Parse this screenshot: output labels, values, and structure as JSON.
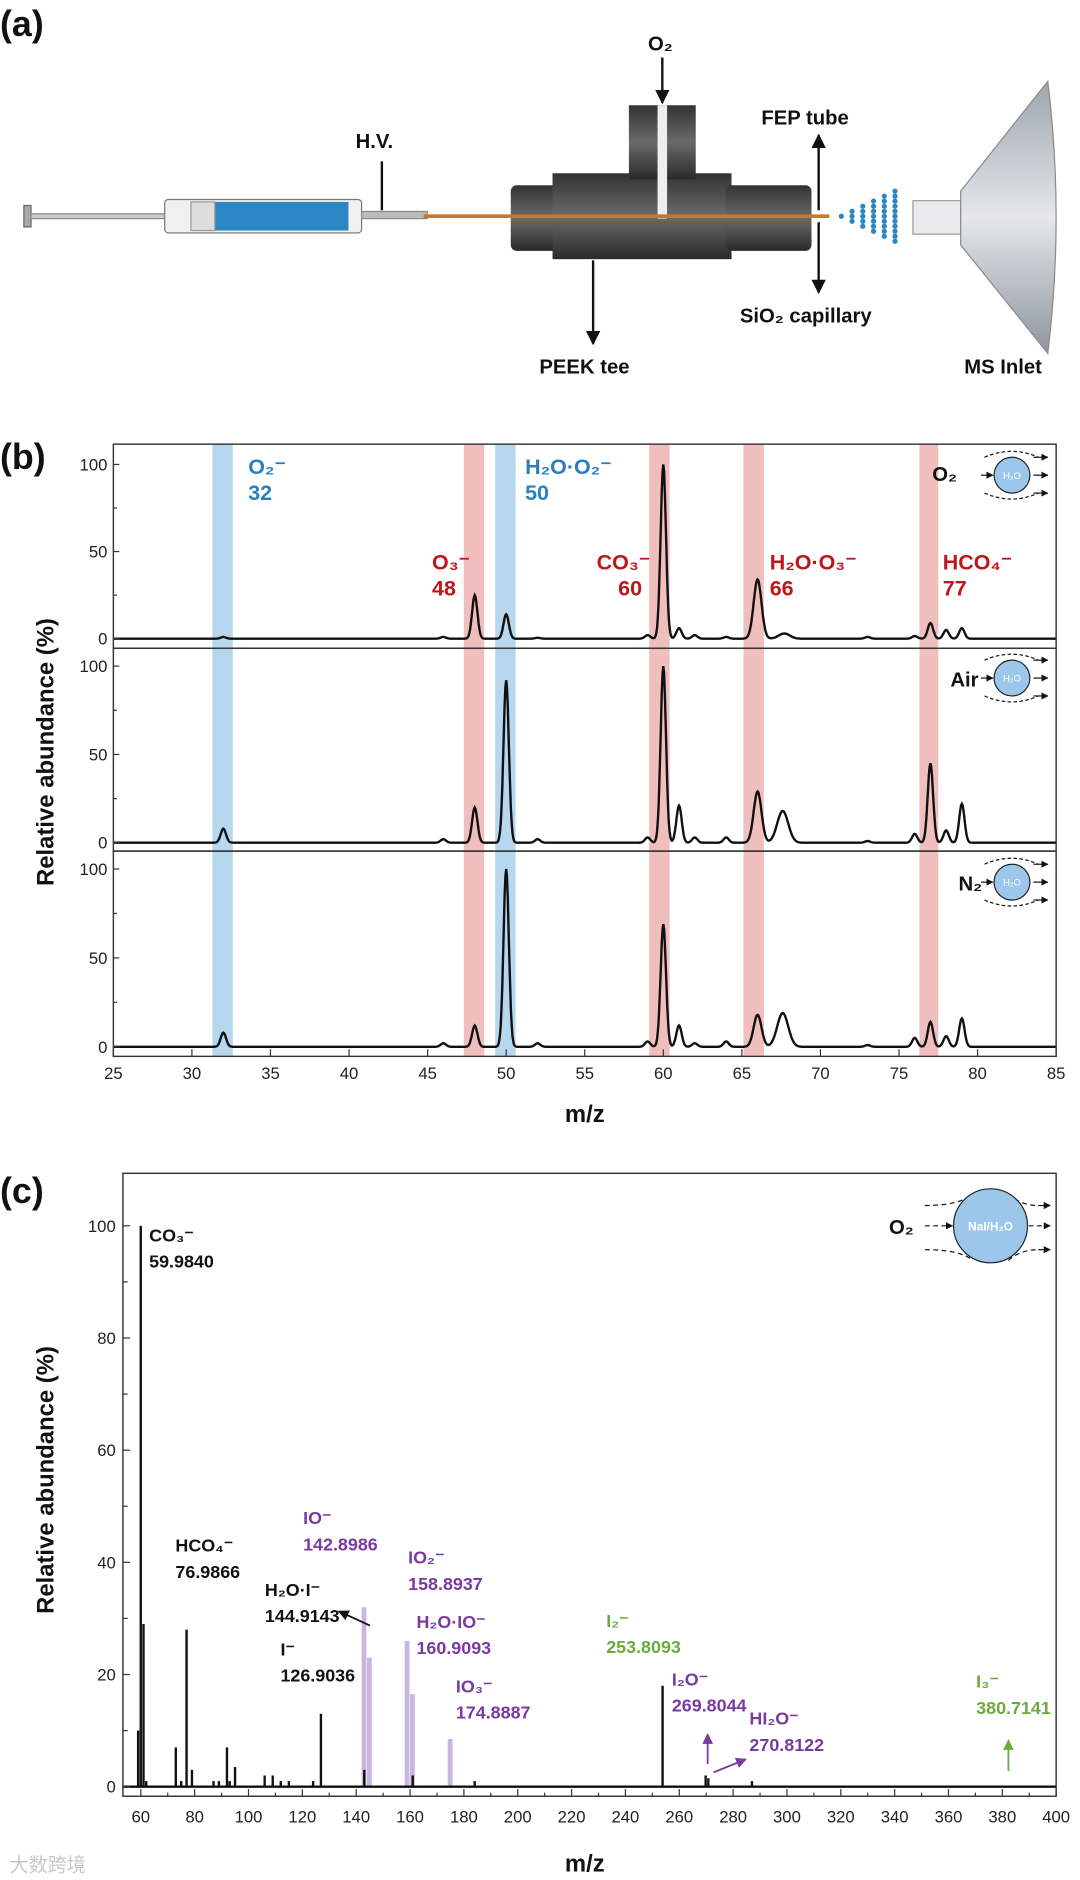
{
  "panels": {
    "a": "(a)",
    "b": "(b)",
    "c": "(c)"
  },
  "diagram": {
    "hv": "H.V.",
    "o2": "O₂",
    "fep": "FEP tube",
    "sio2": "SiO₂ capillary",
    "peek": "PEEK tee",
    "ms": "MS Inlet"
  },
  "watermark": "大数跨境",
  "colors": {
    "blue_band": "#a9d0ea",
    "red_band": "#eeb3b3",
    "droplet": "#9cc7ea",
    "lavender": "#c9b6de",
    "syringe": "#2a87c4",
    "capillary": "#c8782a"
  },
  "chart_data": [
    {
      "type": "line",
      "title": "(b)",
      "xlabel": "m/z",
      "ylabel": "Relative abundance (%)",
      "xlim": [
        25,
        85
      ],
      "xticks": [
        25,
        30,
        35,
        40,
        45,
        50,
        55,
        60,
        65,
        70,
        75,
        80,
        85
      ],
      "ylim": [
        0,
        100
      ],
      "yticks": [
        0,
        50,
        100
      ],
      "bands": [
        {
          "color": "blue",
          "range": [
            31.3,
            32.6
          ],
          "label": "O₂⁻",
          "mz": "32"
        },
        {
          "color": "red",
          "range": [
            47.3,
            48.6
          ],
          "label": "O₃⁻",
          "mz": "48"
        },
        {
          "color": "blue",
          "range": [
            49.3,
            50.6
          ],
          "label": "H₂O·O₂⁻",
          "mz": "50"
        },
        {
          "color": "red",
          "range": [
            59.1,
            60.4
          ],
          "label": "CO₃⁻",
          "mz": "60"
        },
        {
          "color": "red",
          "range": [
            65.1,
            66.4
          ],
          "label": "H₂O·O₃⁻",
          "mz": "66"
        },
        {
          "color": "red",
          "range": [
            76.3,
            77.5
          ],
          "label": "HCO₄⁻",
          "mz": "77"
        }
      ],
      "series": [
        {
          "name": "O₂",
          "peaks": [
            [
              32,
              1
            ],
            [
              46,
              1
            ],
            [
              48,
              25
            ],
            [
              50,
              14
            ],
            [
              52,
              0.5
            ],
            [
              59,
              2
            ],
            [
              60,
              100
            ],
            [
              61,
              6
            ],
            [
              62,
              2
            ],
            [
              64,
              1
            ],
            [
              66,
              34
            ],
            [
              67.7,
              3
            ],
            [
              73,
              1
            ],
            [
              76,
              1.5
            ],
            [
              77,
              9
            ],
            [
              78,
              5
            ],
            [
              79,
              6
            ]
          ]
        },
        {
          "name": "Air",
          "peaks": [
            [
              32,
              8
            ],
            [
              46,
              2
            ],
            [
              48,
              20
            ],
            [
              50,
              92
            ],
            [
              52,
              2
            ],
            [
              59,
              3
            ],
            [
              60,
              100
            ],
            [
              61,
              21
            ],
            [
              62,
              3
            ],
            [
              64,
              3
            ],
            [
              66,
              29
            ],
            [
              67.6,
              18
            ],
            [
              73,
              1
            ],
            [
              76,
              5
            ],
            [
              77,
              45
            ],
            [
              78,
              7
            ],
            [
              79,
              22
            ]
          ]
        },
        {
          "name": "N₂",
          "peaks": [
            [
              32,
              8
            ],
            [
              46,
              2
            ],
            [
              48,
              12
            ],
            [
              50,
              100
            ],
            [
              52,
              2
            ],
            [
              59,
              3
            ],
            [
              60,
              69
            ],
            [
              61,
              12
            ],
            [
              62,
              2
            ],
            [
              64,
              3
            ],
            [
              66,
              18
            ],
            [
              67.6,
              19
            ],
            [
              73,
              1
            ],
            [
              76,
              5
            ],
            [
              77,
              14
            ],
            [
              78,
              6
            ],
            [
              79,
              16
            ]
          ]
        }
      ],
      "inset_label": "H₂O"
    },
    {
      "type": "bar",
      "title": "(c)",
      "xlabel": "m/z",
      "ylabel": "Relative abundance (%)",
      "xlim": [
        55,
        400
      ],
      "xticks": [
        60,
        80,
        100,
        120,
        140,
        160,
        180,
        200,
        220,
        240,
        260,
        280,
        300,
        320,
        340,
        360,
        380,
        400
      ],
      "ylim": [
        -2,
        109
      ],
      "yticks": [
        0,
        20,
        40,
        60,
        80,
        100
      ],
      "inset": {
        "gas": "O₂",
        "droplet": "NaI/H₂O"
      },
      "peaks": [
        [
          59,
          10,
          "k"
        ],
        [
          59.98,
          100,
          "k"
        ],
        [
          61,
          29,
          "k"
        ],
        [
          62,
          1,
          "k"
        ],
        [
          73,
          7,
          "k"
        ],
        [
          75,
          1,
          "k"
        ],
        [
          76.99,
          28,
          "k"
        ],
        [
          79,
          3,
          "k"
        ],
        [
          87,
          1,
          "k"
        ],
        [
          89,
          1,
          "k"
        ],
        [
          92,
          7,
          "k"
        ],
        [
          93,
          1,
          "k"
        ],
        [
          95,
          3.5,
          "k"
        ],
        [
          106,
          2,
          "k"
        ],
        [
          109,
          2,
          "k"
        ],
        [
          112,
          1,
          "k"
        ],
        [
          115,
          1,
          "k"
        ],
        [
          124,
          1,
          "k"
        ],
        [
          126.9,
          13,
          "k"
        ],
        [
          142.9,
          32,
          "l"
        ],
        [
          143,
          3,
          "k"
        ],
        [
          144.9,
          23,
          "l"
        ],
        [
          158.9,
          26,
          "l"
        ],
        [
          160.9,
          16.5,
          "l"
        ],
        [
          161,
          2,
          "k"
        ],
        [
          174.9,
          8.5,
          "l"
        ],
        [
          184,
          1,
          "k"
        ],
        [
          253.8,
          18,
          "k"
        ],
        [
          269.8,
          2,
          "k"
        ],
        [
          270.8,
          1.5,
          "k"
        ],
        [
          287,
          1,
          "k"
        ]
      ],
      "annotations": [
        {
          "ion": "CO₃⁻",
          "mz": "59.9840"
        },
        {
          "ion": "HCO₄⁻",
          "mz": "76.9866"
        },
        {
          "ion": "I⁻",
          "mz": "126.9036"
        },
        {
          "ion": "H₂O·I⁻",
          "mz": "144.9143"
        },
        {
          "ion": "IO⁻",
          "mz": "142.8986"
        },
        {
          "ion": "IO₂⁻",
          "mz": "158.8937"
        },
        {
          "ion": "H₂O·IO⁻",
          "mz": "160.9093"
        },
        {
          "ion": "IO₃⁻",
          "mz": "174.8887"
        },
        {
          "ion": "I₂⁻",
          "mz": "253.8093"
        },
        {
          "ion": "I₂O⁻",
          "mz": "269.8044"
        },
        {
          "ion": "HI₂O⁻",
          "mz": "270.8122"
        },
        {
          "ion": "I₃⁻",
          "mz": "380.7141"
        }
      ]
    }
  ]
}
